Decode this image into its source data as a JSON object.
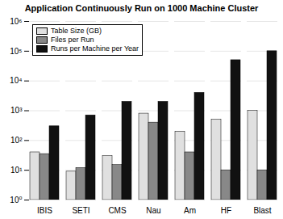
{
  "chart_data": {
    "type": "bar",
    "title": "Application Continuously Run on 1000 Machine Cluster",
    "categories": [
      "IBIS",
      "SETI",
      "CMS",
      "Nau",
      "Am",
      "HF",
      "Blast"
    ],
    "series": [
      {
        "name": "Table Size (GB)",
        "color": "#e0e0e0",
        "values": [
          40,
          9,
          30,
          800,
          200,
          500,
          1000
        ]
      },
      {
        "name": "Files per Run",
        "color": "#888888",
        "values": [
          35,
          12,
          15,
          400,
          40,
          10,
          10
        ]
      },
      {
        "name": "Runs per Machine per Year",
        "color": "#111111",
        "values": [
          300,
          700,
          2000,
          2000,
          4000,
          50000,
          100000
        ]
      }
    ],
    "ylim": [
      1,
      1000000
    ],
    "yticks": [
      {
        "value": 1,
        "label": "10⁰"
      },
      {
        "value": 10,
        "label": "10¹"
      },
      {
        "value": 100,
        "label": "10²"
      },
      {
        "value": 1000,
        "label": "10³"
      },
      {
        "value": 10000,
        "label": "10⁴"
      },
      {
        "value": 100000,
        "label": "10⁵"
      },
      {
        "value": 1000000,
        "label": "10⁶"
      }
    ],
    "log": "y",
    "grid": true,
    "legend": "upper left"
  }
}
